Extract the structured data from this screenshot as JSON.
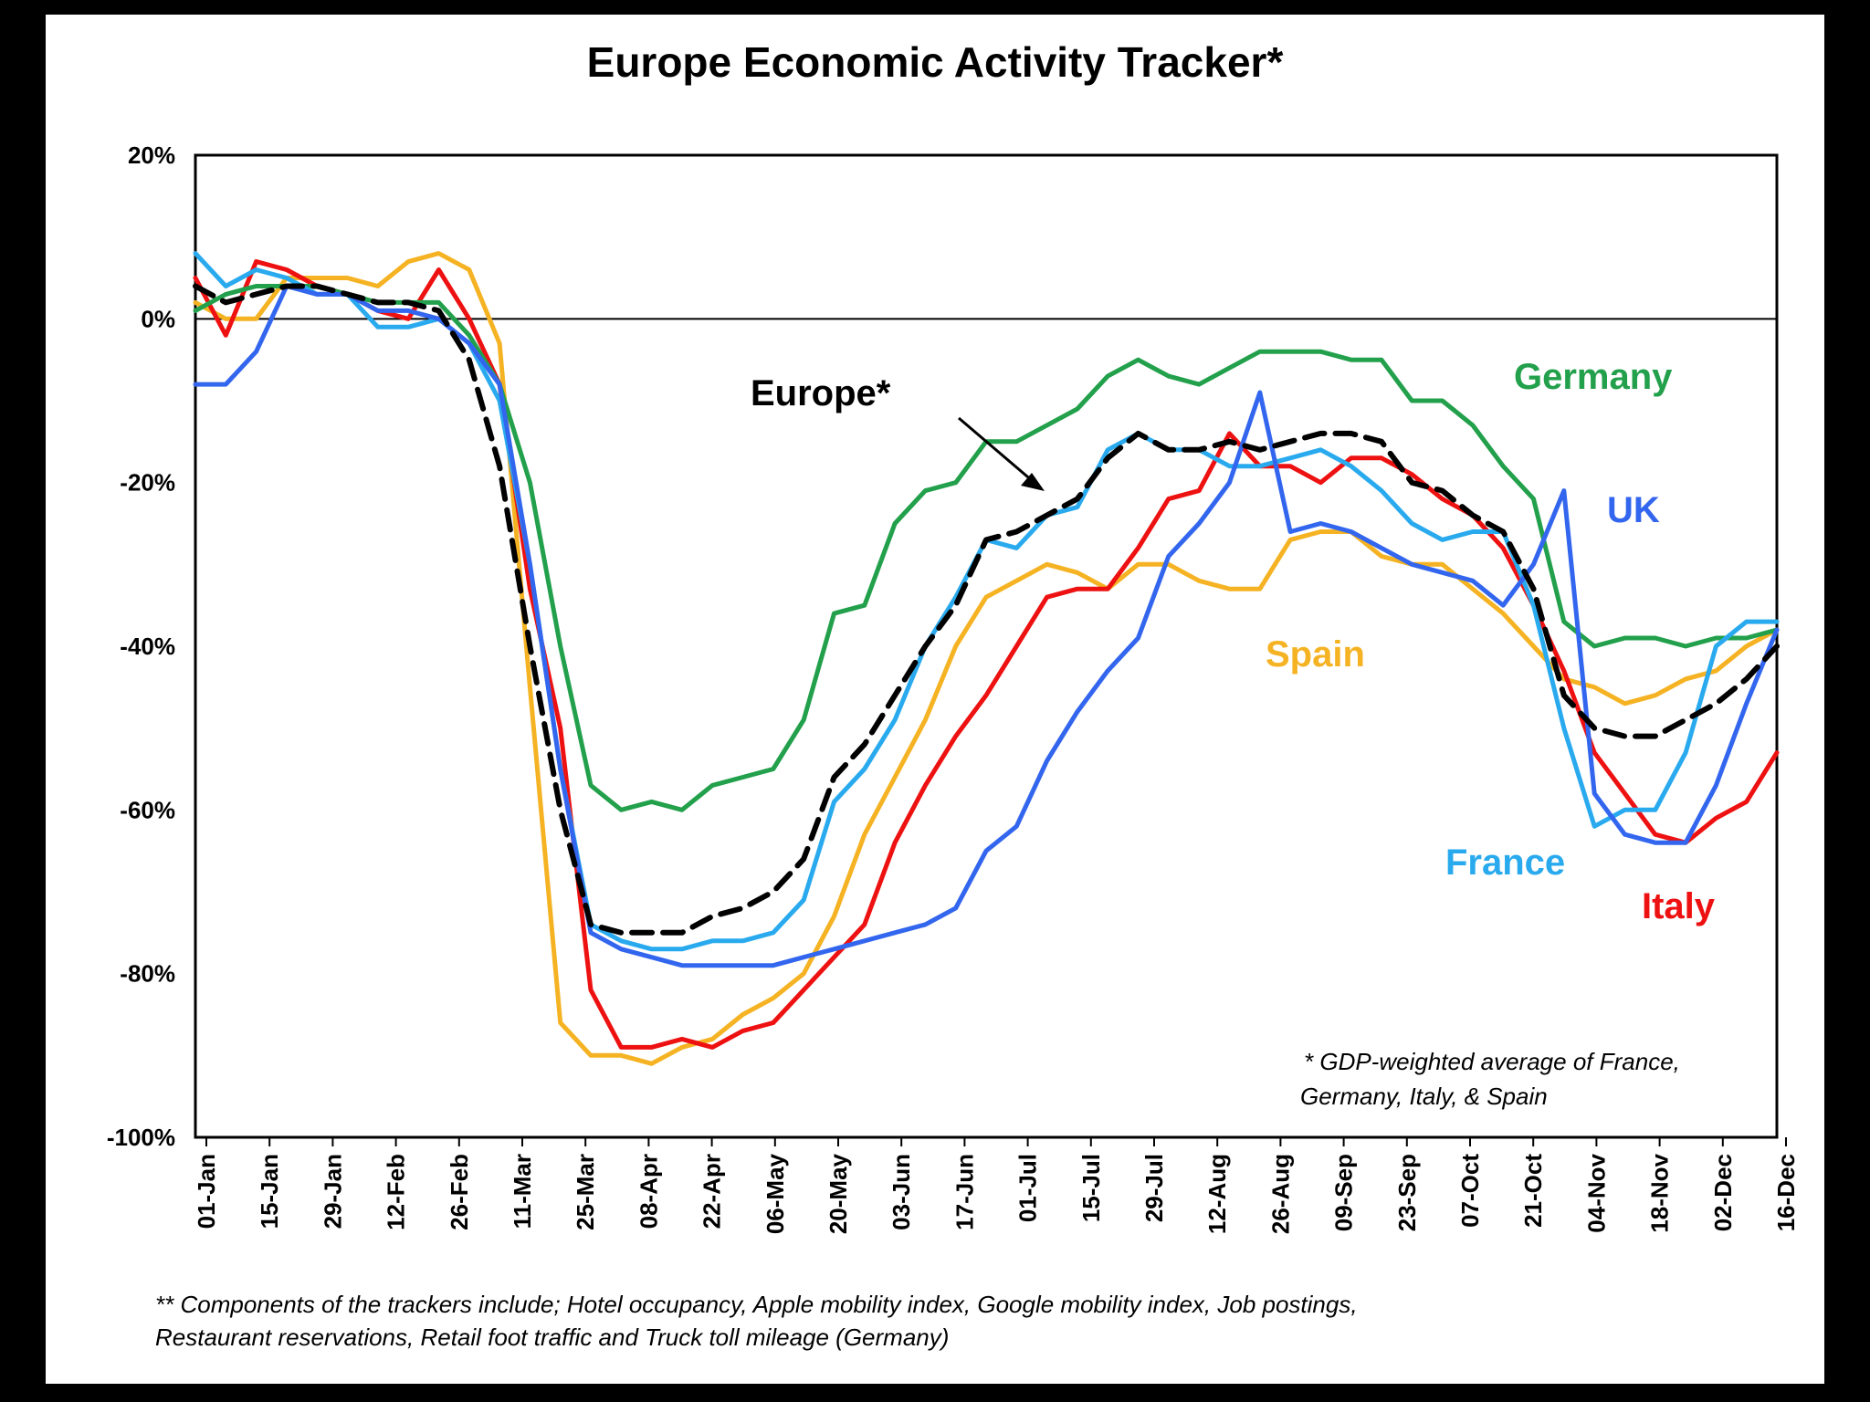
{
  "chart_data": {
    "type": "line",
    "title": "Europe Economic Activity Tracker*",
    "xlabel": "",
    "ylabel": "",
    "ylim": [
      -100,
      20
    ],
    "yticks": [
      20,
      0,
      -20,
      -40,
      -60,
      -80,
      -100
    ],
    "ytick_labels": [
      "20%",
      "0%",
      "-20%",
      "-40%",
      "-60%",
      "-80%",
      "-100%"
    ],
    "x_tick_labels": [
      "01-Jan",
      "15-Jan",
      "29-Jan",
      "12-Feb",
      "26-Feb",
      "11-Mar",
      "25-Mar",
      "08-Apr",
      "22-Apr",
      "06-May",
      "20-May",
      "03-Jun",
      "17-Jun",
      "01-Jul",
      "15-Jul",
      "29-Jul",
      "12-Aug",
      "26-Aug",
      "09-Sep",
      "23-Sep",
      "07-Oct",
      "21-Oct",
      "04-Nov",
      "18-Nov",
      "02-Dec",
      "16-Dec"
    ],
    "grid": false,
    "zero_line": true,
    "series": [
      {
        "name": "Germany",
        "color": "#22A04B",
        "dash": false,
        "values": [
          1,
          3,
          4,
          4,
          4,
          3,
          2,
          2,
          2,
          -2,
          -8,
          -20,
          -40,
          -57,
          -60,
          -59,
          -60,
          -57,
          -56,
          -55,
          -49,
          -36,
          -35,
          -25,
          -21,
          -20,
          -15,
          -15,
          -13,
          -11,
          -7,
          -5,
          -7,
          -8,
          -6,
          -4,
          -4,
          -4,
          -5,
          -5,
          -10,
          -10,
          -13,
          -18,
          -22,
          -37,
          -40,
          -39,
          -39,
          -40,
          -39,
          -39,
          -38
        ]
      },
      {
        "name": "UK",
        "color": "#3366EE",
        "dash": false,
        "values": [
          -8,
          -8,
          -4,
          4,
          3,
          3,
          1,
          1,
          0,
          -3,
          -8,
          -30,
          -55,
          -75,
          -77,
          -78,
          -79,
          -79,
          -79,
          -79,
          -78,
          -77,
          -76,
          -75,
          -74,
          -72,
          -65,
          -62,
          -54,
          -48,
          -43,
          -39,
          -29,
          -25,
          -20,
          -9,
          -26,
          -25,
          -26,
          -28,
          -30,
          -31,
          -32,
          -35,
          -30,
          -21,
          -58,
          -63,
          -64,
          -64,
          -57,
          -47,
          -38
        ]
      },
      {
        "name": "France",
        "color": "#2AAAEE",
        "dash": false,
        "values": [
          8,
          4,
          6,
          5,
          3,
          3,
          -1,
          -1,
          0,
          -3,
          -10,
          -30,
          -55,
          -74,
          -76,
          -77,
          -77,
          -76,
          -76,
          -75,
          -71,
          -59,
          -55,
          -49,
          -40,
          -34,
          -27,
          -28,
          -24,
          -23,
          -16,
          -14,
          -16,
          -16,
          -18,
          -18,
          -17,
          -16,
          -18,
          -21,
          -25,
          -27,
          -26,
          -26,
          -35,
          -50,
          -62,
          -60,
          -60,
          -53,
          -40,
          -37,
          -37
        ]
      },
      {
        "name": "Spain",
        "color": "#F5B324",
        "dash": false,
        "values": [
          2,
          0,
          0,
          5,
          5,
          5,
          4,
          7,
          8,
          6,
          -3,
          -45,
          -86,
          -90,
          -90,
          -91,
          -89,
          -88,
          -85,
          -83,
          -80,
          -73,
          -63,
          -56,
          -49,
          -40,
          -34,
          -32,
          -30,
          -31,
          -33,
          -30,
          -30,
          -32,
          -33,
          -33,
          -27,
          -26,
          -26,
          -29,
          -30,
          -30,
          -33,
          -36,
          -40,
          -44,
          -45,
          -47,
          -46,
          -44,
          -43,
          -40,
          -38
        ]
      },
      {
        "name": "Italy",
        "color": "#EE1111",
        "dash": false,
        "values": [
          5,
          -2,
          7,
          6,
          4,
          3,
          1,
          0,
          6,
          0,
          -8,
          -33,
          -50,
          -82,
          -89,
          -89,
          -88,
          -89,
          -87,
          -86,
          -82,
          -78,
          -74,
          -64,
          -57,
          -51,
          -46,
          -40,
          -34,
          -33,
          -33,
          -28,
          -22,
          -21,
          -14,
          -18,
          -18,
          -20,
          -17,
          -17,
          -19,
          -22,
          -24,
          -28,
          -35,
          -43,
          -53,
          -58,
          -63,
          -64,
          -61,
          -59,
          -53
        ]
      },
      {
        "name": "Europe",
        "color": "#000000",
        "dash": true,
        "values": [
          4,
          2,
          3,
          4,
          4,
          3,
          2,
          2,
          1,
          -5,
          -18,
          -40,
          -60,
          -74,
          -75,
          -75,
          -75,
          -73,
          -72,
          -70,
          -66,
          -56,
          -52,
          -46,
          -40,
          -35,
          -27,
          -26,
          -24,
          -22,
          -17,
          -14,
          -16,
          -16,
          -15,
          -16,
          -15,
          -14,
          -14,
          -15,
          -20,
          -21,
          -24,
          -26,
          -33,
          -46,
          -50,
          -51,
          -51,
          -49,
          -47,
          -44,
          -40
        ]
      }
    ],
    "series_labels": {
      "germany": "Germany",
      "uk": "UK",
      "spain": "Spain",
      "france": "France",
      "italy": "Italy",
      "europe": "Europe*"
    },
    "annotation": "* GDP-weighted average of France, Germany, Italy, & Spain",
    "annotation_line1": "* GDP-weighted average of France,",
    "annotation_line2": "Germany, Italy, & Spain",
    "footnote_line1": "** Components of the trackers include; Hotel occupancy, Apple mobility index, Google mobility index, Job postings,",
    "footnote_line2": "Restaurant reservations, Retail foot traffic and Truck toll mileage (Germany)"
  }
}
